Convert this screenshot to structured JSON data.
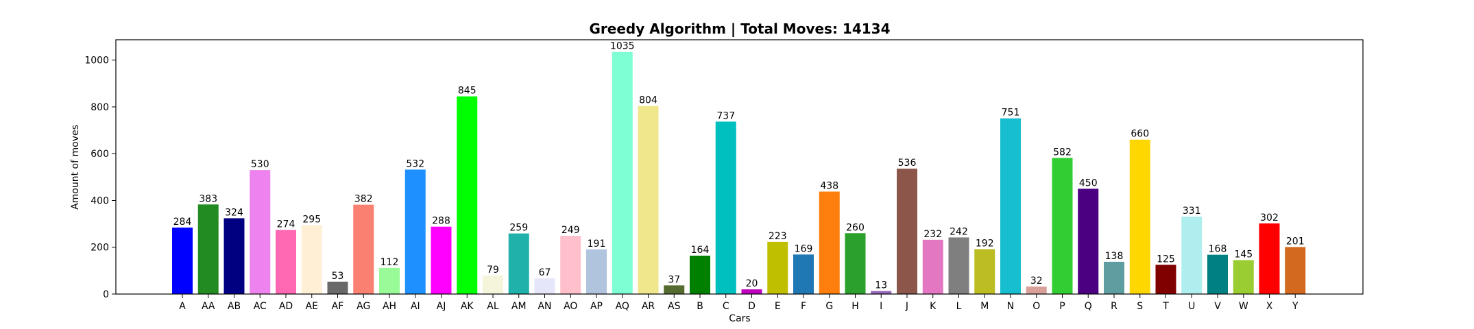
{
  "chart_data": {
    "type": "bar",
    "title": "Greedy Algorithm | Total Moves: 14134",
    "xlabel": "Cars",
    "ylabel": "Amount of moves",
    "ylim": [
      0,
      1087
    ],
    "yticks": [
      0,
      200,
      400,
      600,
      800,
      1000
    ],
    "grid": false,
    "categories": [
      "A",
      "AA",
      "AB",
      "AC",
      "AD",
      "AE",
      "AF",
      "AG",
      "AH",
      "AI",
      "AJ",
      "AK",
      "AL",
      "AM",
      "AN",
      "AO",
      "AP",
      "AQ",
      "AR",
      "AS",
      "B",
      "C",
      "D",
      "E",
      "F",
      "G",
      "H",
      "I",
      "J",
      "K",
      "L",
      "M",
      "N",
      "O",
      "P",
      "Q",
      "R",
      "S",
      "T",
      "U",
      "V",
      "W",
      "X",
      "Y"
    ],
    "values": [
      284,
      383,
      324,
      530,
      274,
      295,
      53,
      382,
      112,
      532,
      288,
      845,
      79,
      259,
      67,
      249,
      191,
      1035,
      804,
      37,
      164,
      737,
      20,
      223,
      169,
      438,
      260,
      13,
      536,
      232,
      242,
      192,
      751,
      32,
      582,
      450,
      138,
      660,
      125,
      331,
      168,
      145,
      302,
      201
    ],
    "colors": [
      "#0000ff",
      "#228b22",
      "#000080",
      "#ee82ee",
      "#ff69b4",
      "#ffefd5",
      "#696969",
      "#fa8072",
      "#98fb98",
      "#1e90ff",
      "#ff00ff",
      "#00ff00",
      "#f5f5dc",
      "#20b2aa",
      "#e6e6fa",
      "#ffc0cb",
      "#b0c4de",
      "#7fffd4",
      "#f0e68c",
      "#556b2f",
      "#008000",
      "#00bfbf",
      "#bf00bf",
      "#bfbf00",
      "#1f77b4",
      "#ff7f0e",
      "#2ca02c",
      "#9467bd",
      "#8c564b",
      "#e377c2",
      "#7f7f7f",
      "#bcbd22",
      "#17becf",
      "#d9a09a",
      "#32cd32",
      "#4b0082",
      "#5f9ea0",
      "#ffd700",
      "#800000",
      "#afeeee",
      "#008080",
      "#9acd32",
      "#ff0000",
      "#d2691e"
    ]
  }
}
